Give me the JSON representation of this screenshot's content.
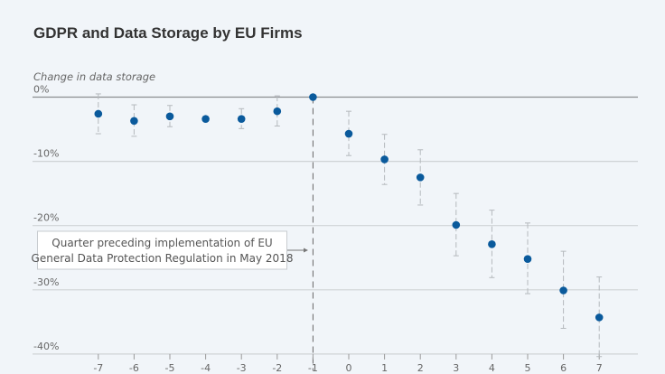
{
  "chart_data": {
    "type": "scatter",
    "title": "GDPR and Data Storage by EU Firms",
    "ylabel": "Change in data storage",
    "xlabel": "",
    "ylim": [
      -40,
      0
    ],
    "xlim": [
      -7,
      7
    ],
    "yticks": [
      0,
      -10,
      -20,
      -30,
      -40
    ],
    "ytick_labels": [
      "0%",
      "-10%",
      "-20%",
      "-30%",
      "-40%"
    ],
    "x": [
      -7,
      -6,
      -5,
      -4,
      -3,
      -2,
      -1,
      0,
      1,
      2,
      3,
      4,
      5,
      6,
      7
    ],
    "values": [
      -2.6,
      -3.7,
      -3.0,
      -3.4,
      -3.4,
      -2.2,
      0,
      -5.7,
      -9.7,
      -12.5,
      -19.9,
      -22.9,
      -25.2,
      -30.1,
      -34.3
    ],
    "ci_upper": [
      0.5,
      -1.2,
      -1.3,
      null,
      -1.8,
      0.2,
      null,
      -2.2,
      -5.8,
      -8.2,
      -15.0,
      -17.6,
      -19.6,
      -24.0,
      -28.0
    ],
    "ci_lower": [
      -5.7,
      -6.1,
      -4.6,
      null,
      -4.9,
      -4.5,
      null,
      -9.1,
      -13.6,
      -16.8,
      -24.7,
      -28.1,
      -30.6,
      -36.0,
      -40.4
    ],
    "annotation": {
      "line1": "Quarter preceding implementation of EU",
      "line2": "General Data Protection Regulation in May 2018",
      "x": -1
    },
    "grid": true,
    "colors": {
      "point": "#0a5a9c",
      "errorbar": "#b5b9bd",
      "grid": "#cfd3d6",
      "zero": "#8a8d90"
    }
  }
}
